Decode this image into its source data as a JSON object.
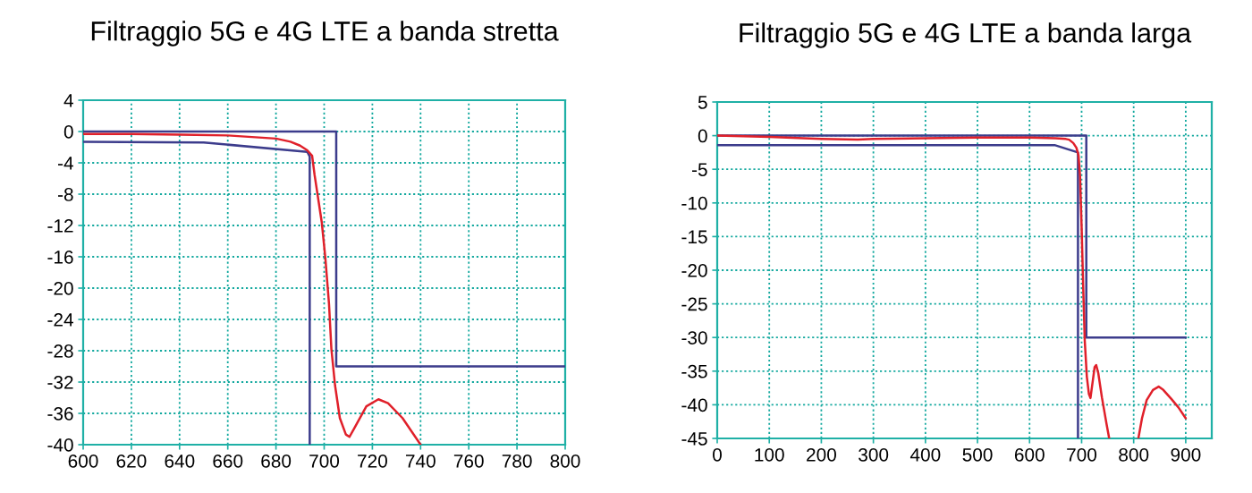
{
  "chart_data": [
    {
      "type": "line",
      "title": "Filtraggio 5G e 4G LTE a banda stretta",
      "xlim": [
        600,
        800
      ],
      "ylim": [
        -40,
        4
      ],
      "xticks": [
        600,
        620,
        640,
        660,
        680,
        700,
        720,
        740,
        760,
        780,
        800
      ],
      "yticks": [
        -40,
        -36,
        -32,
        -28,
        -24,
        -20,
        -16,
        -12,
        -8,
        -4,
        0,
        4
      ],
      "grid": true,
      "line_style": "solid",
      "series": [
        {
          "color": "#3c3c8c",
          "x": [
            600,
            705,
            705,
            800
          ],
          "values": [
            0,
            0,
            -30,
            -30
          ]
        },
        {
          "color": "#3c3c8c",
          "x": [
            600,
            650,
            693,
            694,
            694
          ],
          "values": [
            -1.3,
            -1.4,
            -2.6,
            -3.2,
            -40
          ]
        },
        {
          "color": "#e0202a",
          "x": [
            600,
            620,
            640,
            660,
            670,
            680,
            686,
            690,
            693,
            695,
            696,
            699,
            700.5,
            702,
            703,
            704.5,
            706.5,
            709,
            710.5,
            712.5,
            717.5,
            722.5,
            726.5,
            732.5,
            740
          ],
          "values": [
            -0.3,
            -0.3,
            -0.4,
            -0.5,
            -0.7,
            -0.9,
            -1.3,
            -1.8,
            -2.4,
            -3.1,
            -5.5,
            -11.6,
            -16.2,
            -22,
            -27.8,
            -32.4,
            -36.6,
            -38.7,
            -39,
            -37.9,
            -35.1,
            -34.2,
            -34.7,
            -36.6,
            -40
          ]
        }
      ]
    },
    {
      "type": "line",
      "title": "Filtraggio 5G e 4G LTE a banda larga",
      "xlim": [
        0,
        950
      ],
      "ylim": [
        -45,
        5
      ],
      "xticks": [
        0,
        100,
        200,
        300,
        400,
        500,
        600,
        700,
        800,
        900
      ],
      "yticks": [
        -45,
        -40,
        -35,
        -30,
        -25,
        -20,
        -15,
        -10,
        -5,
        0,
        5
      ],
      "grid": true,
      "line_style": "solid",
      "series": [
        {
          "color": "#3c3c8c",
          "x": [
            0,
            709,
            709,
            900
          ],
          "values": [
            0,
            0,
            -30,
            -30
          ]
        },
        {
          "color": "#3c3c8c",
          "x": [
            0,
            648,
            693,
            693
          ],
          "values": [
            -1.4,
            -1.4,
            -2.5,
            -45
          ]
        },
        {
          "color": "#e0202a",
          "x": [
            0,
            100,
            200,
            270,
            300,
            400,
            500,
            600,
            650,
            670,
            676,
            684,
            690,
            694,
            697,
            700,
            703,
            706,
            710,
            714,
            717,
            721,
            725,
            728,
            732,
            739,
            748,
            753,
            781,
            809,
            816,
            825,
            837,
            848,
            857,
            872,
            886,
            900
          ],
          "values": [
            0,
            -0.2,
            -0.5,
            -0.6,
            -0.5,
            -0.4,
            -0.3,
            -0.3,
            -0.4,
            -0.5,
            -0.6,
            -1.1,
            -1.8,
            -2.9,
            -6,
            -13.6,
            -22.4,
            -30.4,
            -35.8,
            -38.4,
            -39,
            -36.7,
            -34.4,
            -34.1,
            -35.3,
            -38.9,
            -42.9,
            -45,
            null,
            -45,
            -42,
            -39.3,
            -37.8,
            -37.3,
            -37.8,
            -39.1,
            -40.4,
            -42
          ]
        }
      ]
    }
  ]
}
